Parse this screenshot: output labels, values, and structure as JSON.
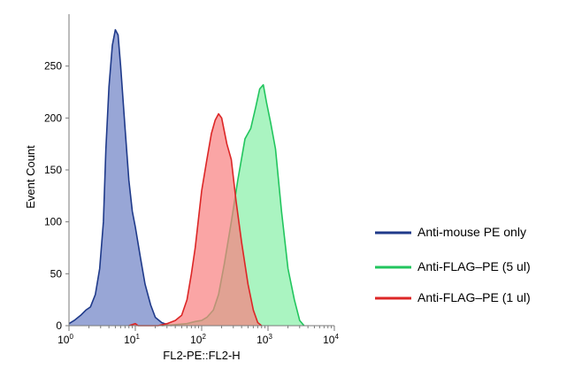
{
  "chart_data": {
    "type": "area",
    "title": "",
    "xlabel": "FL2-PE::FL2-H",
    "ylabel": "Event Count",
    "xscale": "log",
    "xlim": [
      1,
      10000
    ],
    "ylim": [
      0,
      300
    ],
    "x_ticks": [
      {
        "value": 1,
        "base": "10",
        "exp": "0"
      },
      {
        "value": 10,
        "base": "10",
        "exp": "1"
      },
      {
        "value": 100,
        "base": "10",
        "exp": "2"
      },
      {
        "value": 1000,
        "base": "10",
        "exp": "3"
      },
      {
        "value": 10000,
        "base": "10",
        "exp": "4"
      }
    ],
    "y_ticks": [
      0,
      50,
      100,
      150,
      200,
      250
    ],
    "grid": false,
    "legend_position": "right",
    "series": [
      {
        "name": "Anti-mouse PE only",
        "line_color": "#1f3a8a",
        "fill_color": "#6c80c4",
        "points": [
          [
            1,
            2
          ],
          [
            1.2,
            5
          ],
          [
            1.5,
            10
          ],
          [
            1.8,
            15
          ],
          [
            2.1,
            18
          ],
          [
            2.5,
            30
          ],
          [
            2.9,
            55
          ],
          [
            3.3,
            100
          ],
          [
            3.6,
            170
          ],
          [
            4,
            230
          ],
          [
            4.5,
            270
          ],
          [
            5,
            285
          ],
          [
            5.5,
            280
          ],
          [
            6,
            250
          ],
          [
            7,
            190
          ],
          [
            8,
            140
          ],
          [
            9,
            110
          ],
          [
            10,
            95
          ],
          [
            12,
            65
          ],
          [
            14,
            40
          ],
          [
            17,
            20
          ],
          [
            20,
            8
          ],
          [
            25,
            3
          ],
          [
            30,
            1
          ],
          [
            35,
            0
          ]
        ]
      },
      {
        "name": "Anti-FLAG–PE (5 ul)",
        "line_color": "#22c55e",
        "fill_color": "#86f0a6",
        "points": [
          [
            25,
            0
          ],
          [
            40,
            1
          ],
          [
            60,
            2
          ],
          [
            80,
            4
          ],
          [
            100,
            5
          ],
          [
            120,
            8
          ],
          [
            150,
            15
          ],
          [
            180,
            30
          ],
          [
            220,
            60
          ],
          [
            280,
            100
          ],
          [
            350,
            140
          ],
          [
            450,
            180
          ],
          [
            550,
            190
          ],
          [
            650,
            210
          ],
          [
            750,
            228
          ],
          [
            850,
            232
          ],
          [
            950,
            215
          ],
          [
            1100,
            195
          ],
          [
            1300,
            170
          ],
          [
            1600,
            110
          ],
          [
            2000,
            55
          ],
          [
            2500,
            25
          ],
          [
            3000,
            5
          ],
          [
            3500,
            0
          ]
        ]
      },
      {
        "name": "Anti-FLAG–PE (1 ul)",
        "line_color": "#dc2626",
        "fill_color": "#f87f7f",
        "points": [
          [
            8,
            0
          ],
          [
            10,
            2
          ],
          [
            11,
            0
          ],
          [
            22,
            0
          ],
          [
            30,
            2
          ],
          [
            40,
            5
          ],
          [
            50,
            10
          ],
          [
            60,
            25
          ],
          [
            70,
            50
          ],
          [
            80,
            75
          ],
          [
            100,
            130
          ],
          [
            120,
            160
          ],
          [
            140,
            185
          ],
          [
            160,
            198
          ],
          [
            180,
            204
          ],
          [
            200,
            200
          ],
          [
            240,
            175
          ],
          [
            280,
            160
          ],
          [
            330,
            120
          ],
          [
            400,
            80
          ],
          [
            500,
            40
          ],
          [
            600,
            15
          ],
          [
            700,
            3
          ],
          [
            800,
            0
          ]
        ]
      }
    ]
  }
}
